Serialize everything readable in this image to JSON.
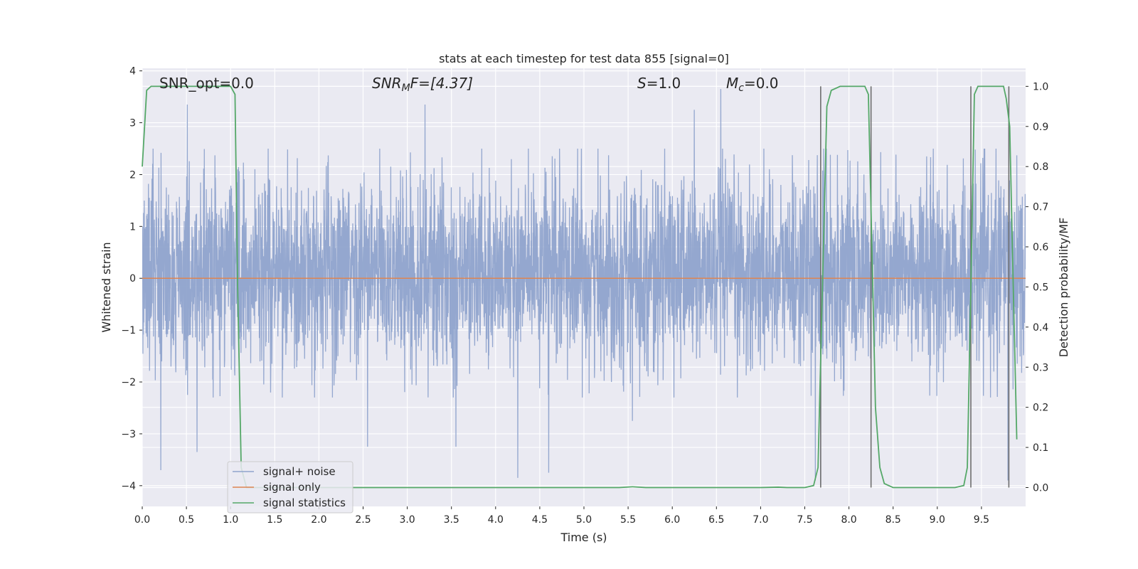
{
  "chart_data": {
    "type": "line",
    "title": "stats at each timestep for test data 855 [signal=0]",
    "xlabel": "Time (s)",
    "ylabel": "Whitened strain",
    "y2label": "Detection probability/MF",
    "xlim": [
      0.0,
      10.0
    ],
    "ylim": [
      -4.4,
      4.05
    ],
    "y2lim": [
      -0.047,
      1.045
    ],
    "xticks": [
      "0.0",
      "0.5",
      "1.0",
      "1.5",
      "2.0",
      "2.5",
      "3.0",
      "3.5",
      "4.0",
      "4.5",
      "5.0",
      "5.5",
      "6.0",
      "6.5",
      "7.0",
      "7.5",
      "8.0",
      "8.5",
      "9.0",
      "9.5"
    ],
    "yticks": [
      "4",
      "3",
      "2",
      "1",
      "0",
      "−1",
      "−2",
      "−3",
      "−4"
    ],
    "y2ticks": [
      "1.0",
      "0.9",
      "0.8",
      "0.7",
      "0.6",
      "0.5",
      "0.4",
      "0.3",
      "0.2",
      "0.1",
      "0.0"
    ],
    "grid": true,
    "legend_position": "lower-left",
    "annotations": {
      "snr_opt": "SNR_opt=0.0",
      "snr_mf_main": "SNR",
      "snr_mf_sub": "M",
      "snr_mf_rest": "F=[4.37]",
      "s_main": "S",
      "s_rest": "=1.0",
      "mc_main": "M",
      "mc_sub": "c",
      "mc_rest": "=0.0"
    },
    "series": [
      {
        "name": "signal+ noise",
        "color": "#8fa3cc",
        "description_values": "whitened noise, amplitude roughly within -1.8..2.1 with spikes to about ±3.7",
        "spikes_x": [
          0.21,
          0.51,
          0.62,
          1.08,
          2.55,
          3.2,
          3.55,
          4.25,
          4.6,
          5.55,
          6.25,
          6.55,
          7.62,
          7.68,
          9.8
        ],
        "spikes_y": [
          -3.7,
          3.35,
          -3.35,
          2.1,
          -3.25,
          3.35,
          -3.25,
          -3.85,
          -3.75,
          -2.75,
          3.25,
          3.65,
          -3.9,
          -4.0,
          -3.9
        ]
      },
      {
        "name": "signal only",
        "color": "#dd8452",
        "x": [
          0.0,
          10.0
        ],
        "y": [
          0.0,
          0.0
        ]
      },
      {
        "name": "signal statistics",
        "color": "#55a868",
        "axis": "right",
        "x": [
          0.0,
          0.05,
          0.1,
          0.2,
          0.4,
          0.6,
          0.8,
          1.0,
          1.05,
          1.08,
          1.12,
          1.18,
          1.3,
          2.0,
          3.0,
          4.0,
          5.0,
          5.4,
          5.55,
          5.7,
          6.0,
          7.0,
          7.2,
          7.3,
          7.5,
          7.6,
          7.65,
          7.7,
          7.75,
          7.8,
          7.9,
          8.0,
          8.1,
          8.18,
          8.22,
          8.27,
          8.3,
          8.35,
          8.4,
          8.45,
          8.5,
          8.6,
          9.0,
          9.2,
          9.3,
          9.34,
          9.38,
          9.42,
          9.46,
          9.5,
          9.6,
          9.75,
          9.78,
          9.82,
          9.86,
          9.9
        ],
        "y": [
          0.8,
          0.99,
          1.0,
          1.0,
          1.0,
          1.0,
          1.0,
          1.0,
          0.98,
          0.5,
          0.05,
          0.0,
          0.0,
          0.0,
          0.0,
          0.0,
          0.0,
          0.0,
          0.002,
          0.0,
          0.0,
          0.0,
          0.001,
          0.0,
          0.0,
          0.005,
          0.05,
          0.5,
          0.95,
          0.99,
          1.0,
          1.0,
          1.0,
          1.0,
          0.98,
          0.5,
          0.2,
          0.05,
          0.01,
          0.005,
          0.0,
          0.0,
          0.0,
          0.0,
          0.005,
          0.05,
          0.5,
          0.98,
          1.0,
          1.0,
          1.0,
          1.0,
          0.97,
          0.9,
          0.5,
          0.12
        ]
      }
    ],
    "vertical_markers_x": [
      7.68,
      8.25,
      9.38,
      9.81
    ]
  }
}
